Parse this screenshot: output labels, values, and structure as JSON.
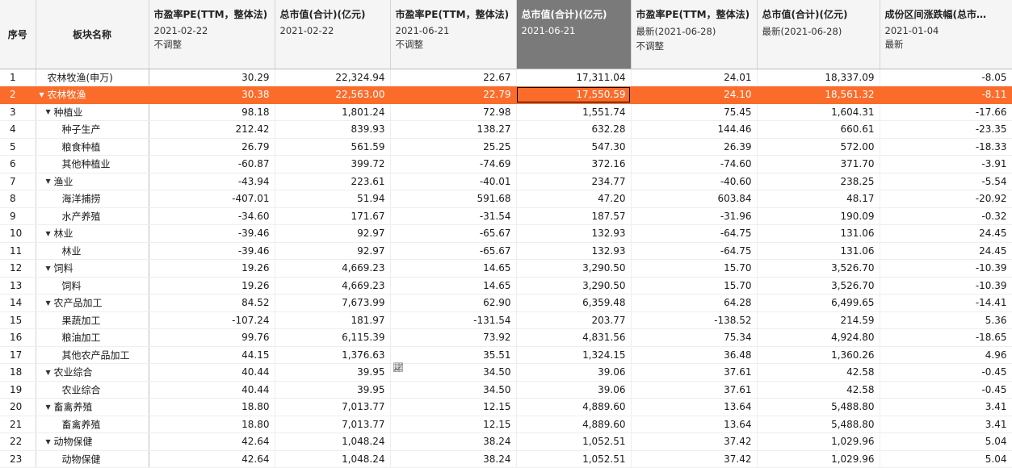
{
  "columns": [
    {
      "line1": "序号"
    },
    {
      "line1": "板块名称"
    },
    {
      "line1": "市盈率PE(TTM，整体法)",
      "line2": "2021-02-22",
      "line3": "不调整"
    },
    {
      "line1": "总市值(合计)(亿元)",
      "line2": "2021-02-22",
      "line3": ""
    },
    {
      "line1": "市盈率PE(TTM，整体法)",
      "line2": "2021-06-21",
      "line3": "不调整"
    },
    {
      "line1": "总市值(合计)(亿元)",
      "line2": "2021-06-21",
      "line3": ""
    },
    {
      "line1": "市盈率PE(TTM，整体法)",
      "line2": "最新(2021-06-28)",
      "line3": "不调整"
    },
    {
      "line1": "总市值(合计)(亿元)",
      "line2": "最新(2021-06-28)",
      "line3": ""
    },
    {
      "line1": "成份区间涨跌幅(总市…",
      "line2": "2021-01-04",
      "line3": "最新"
    }
  ],
  "rows": [
    {
      "idx": "1",
      "name": "农林牧渔(申万)",
      "level": 0,
      "expandable": false,
      "v": [
        "30.29",
        "22,324.94",
        "22.67",
        "17,311.04",
        "24.01",
        "18,337.09",
        "-8.05"
      ]
    },
    {
      "idx": "2",
      "name": "农林牧渔",
      "level": 0,
      "expandable": true,
      "v": [
        "30.38",
        "22,563.00",
        "22.79",
        "17,550.59",
        "24.10",
        "18,561.32",
        "-8.11"
      ]
    },
    {
      "idx": "3",
      "name": "种植业",
      "level": 1,
      "expandable": true,
      "v": [
        "98.18",
        "1,801.24",
        "72.98",
        "1,551.74",
        "75.45",
        "1,604.31",
        "-17.66"
      ]
    },
    {
      "idx": "4",
      "name": "种子生产",
      "level": 2,
      "expandable": false,
      "v": [
        "212.42",
        "839.93",
        "138.27",
        "632.28",
        "144.46",
        "660.61",
        "-23.35"
      ]
    },
    {
      "idx": "5",
      "name": "粮食种植",
      "level": 2,
      "expandable": false,
      "v": [
        "26.79",
        "561.59",
        "25.25",
        "547.30",
        "26.39",
        "572.00",
        "-18.33"
      ]
    },
    {
      "idx": "6",
      "name": "其他种植业",
      "level": 2,
      "expandable": false,
      "v": [
        "-60.87",
        "399.72",
        "-74.69",
        "372.16",
        "-74.60",
        "371.70",
        "-3.91"
      ]
    },
    {
      "idx": "7",
      "name": "渔业",
      "level": 1,
      "expandable": true,
      "v": [
        "-43.94",
        "223.61",
        "-40.01",
        "234.77",
        "-40.60",
        "238.25",
        "-5.54"
      ]
    },
    {
      "idx": "8",
      "name": "海洋捕捞",
      "level": 2,
      "expandable": false,
      "v": [
        "-407.01",
        "51.94",
        "591.68",
        "47.20",
        "603.84",
        "48.17",
        "-20.92"
      ]
    },
    {
      "idx": "9",
      "name": "水产养殖",
      "level": 2,
      "expandable": false,
      "v": [
        "-34.60",
        "171.67",
        "-31.54",
        "187.57",
        "-31.96",
        "190.09",
        "-0.32"
      ]
    },
    {
      "idx": "10",
      "name": "林业",
      "level": 1,
      "expandable": true,
      "v": [
        "-39.46",
        "92.97",
        "-65.67",
        "132.93",
        "-64.75",
        "131.06",
        "24.45"
      ]
    },
    {
      "idx": "11",
      "name": "林业",
      "level": 2,
      "expandable": false,
      "v": [
        "-39.46",
        "92.97",
        "-65.67",
        "132.93",
        "-64.75",
        "131.06",
        "24.45"
      ]
    },
    {
      "idx": "12",
      "name": "饲料",
      "level": 1,
      "expandable": true,
      "v": [
        "19.26",
        "4,669.23",
        "14.65",
        "3,290.50",
        "15.70",
        "3,526.70",
        "-10.39"
      ]
    },
    {
      "idx": "13",
      "name": "饲料",
      "level": 2,
      "expandable": false,
      "v": [
        "19.26",
        "4,669.23",
        "14.65",
        "3,290.50",
        "15.70",
        "3,526.70",
        "-10.39"
      ]
    },
    {
      "idx": "14",
      "name": "农产品加工",
      "level": 1,
      "expandable": true,
      "v": [
        "84.52",
        "7,673.99",
        "62.90",
        "6,359.48",
        "64.28",
        "6,499.65",
        "-14.41"
      ]
    },
    {
      "idx": "15",
      "name": "果蔬加工",
      "level": 2,
      "expandable": false,
      "v": [
        "-107.24",
        "181.97",
        "-131.54",
        "203.77",
        "-138.52",
        "214.59",
        "5.36"
      ]
    },
    {
      "idx": "16",
      "name": "粮油加工",
      "level": 2,
      "expandable": false,
      "v": [
        "99.76",
        "6,115.39",
        "73.92",
        "4,831.56",
        "75.34",
        "4,924.80",
        "-18.65"
      ]
    },
    {
      "idx": "17",
      "name": "其他农产品加工",
      "level": 2,
      "expandable": false,
      "v": [
        "44.15",
        "1,376.63",
        "35.51",
        "1,324.15",
        "36.48",
        "1,360.26",
        "4.96"
      ]
    },
    {
      "idx": "18",
      "name": "农业综合",
      "level": 1,
      "expandable": true,
      "v": [
        "40.44",
        "39.95",
        "34.50",
        "39.06",
        "37.61",
        "42.58",
        "-0.45"
      ]
    },
    {
      "idx": "19",
      "name": "农业综合",
      "level": 2,
      "expandable": false,
      "v": [
        "40.44",
        "39.95",
        "34.50",
        "39.06",
        "37.61",
        "42.58",
        "-0.45"
      ]
    },
    {
      "idx": "20",
      "name": "畜禽养殖",
      "level": 1,
      "expandable": true,
      "v": [
        "18.80",
        "7,013.77",
        "12.15",
        "4,889.60",
        "13.64",
        "5,488.80",
        "3.41"
      ]
    },
    {
      "idx": "21",
      "name": "畜禽养殖",
      "level": 2,
      "expandable": false,
      "v": [
        "18.80",
        "7,013.77",
        "12.15",
        "4,889.60",
        "13.64",
        "5,488.80",
        "3.41"
      ]
    },
    {
      "idx": "22",
      "name": "动物保健",
      "level": 1,
      "expandable": true,
      "v": [
        "42.64",
        "1,048.24",
        "38.24",
        "1,052.51",
        "37.42",
        "1,029.96",
        "5.04"
      ]
    },
    {
      "idx": "23",
      "name": "动物保健",
      "level": 2,
      "expandable": false,
      "v": [
        "42.64",
        "1,048.24",
        "38.24",
        "1,052.51",
        "37.42",
        "1,029.96",
        "5.04"
      ]
    }
  ],
  "highlight_row": 1,
  "selected_column": 5,
  "colors": {
    "highlight": "#fb6c2b",
    "selected_header": "#7a7a7a",
    "header_bg": "#f5f5f5"
  },
  "icons": {
    "expand": "triangle-down-icon",
    "chart": "chart-icon"
  }
}
